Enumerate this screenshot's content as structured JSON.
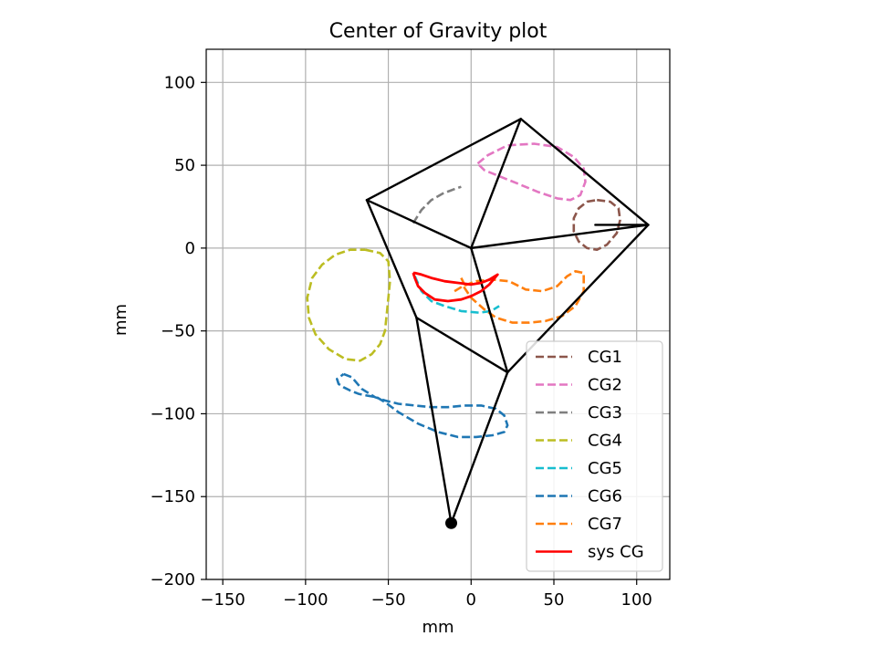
{
  "chart_data": {
    "type": "line",
    "title": "Center of Gravity plot",
    "xlabel": "mm",
    "ylabel": "mm",
    "xlim": [
      -160,
      120
    ],
    "ylim": [
      -200,
      120
    ],
    "xticks": [
      -150,
      -100,
      -50,
      0,
      50,
      100
    ],
    "yticks": [
      -200,
      -150,
      -100,
      -50,
      0,
      50,
      100
    ],
    "xtick_labels": [
      "−150",
      "−100",
      "−50",
      "0",
      "50",
      "100"
    ],
    "ytick_labels": [
      "−200",
      "−150",
      "−100",
      "−50",
      "0",
      "50",
      "100"
    ],
    "grid": true,
    "legend_position": "lower right",
    "colors": {
      "CG1": "#8c564b",
      "CG2": "#e377c2",
      "CG3": "#7f7f7f",
      "CG4": "#bcbd22",
      "CG5": "#17becf",
      "CG6": "#1f77b4",
      "CG7": "#ff7f0e",
      "sys CG": "#ff0000",
      "linkage": "#000000"
    },
    "linkage": [
      {
        "x": [
          0,
          30
        ],
        "y": [
          0,
          78
        ]
      },
      {
        "x": [
          30,
          107
        ],
        "y": [
          78,
          14
        ]
      },
      {
        "x": [
          30,
          -63
        ],
        "y": [
          78,
          29
        ]
      },
      {
        "x": [
          -63,
          0
        ],
        "y": [
          29,
          0
        ]
      },
      {
        "x": [
          0,
          107
        ],
        "y": [
          0,
          14
        ]
      },
      {
        "x": [
          75,
          107
        ],
        "y": [
          14,
          14
        ]
      },
      {
        "x": [
          107,
          22
        ],
        "y": [
          14,
          -75
        ]
      },
      {
        "x": [
          0,
          22
        ],
        "y": [
          0,
          -75
        ]
      },
      {
        "x": [
          -63,
          -33
        ],
        "y": [
          29,
          -42
        ]
      },
      {
        "x": [
          -33,
          22
        ],
        "y": [
          -42,
          -75
        ]
      },
      {
        "x": [
          -33,
          -12
        ],
        "y": [
          -42,
          -166
        ]
      },
      {
        "x": [
          -12,
          22
        ],
        "y": [
          -166,
          -75
        ]
      }
    ],
    "pivot": {
      "x": -12,
      "y": -166
    },
    "series": [
      {
        "name": "CG1",
        "x": [
          76,
          84,
          89,
          90,
          88,
          82,
          76,
          70,
          65,
          62,
          62,
          65,
          70,
          76
        ],
        "y": [
          29,
          28,
          24,
          17,
          9,
          2,
          -1,
          0,
          4,
          10,
          18,
          24,
          28,
          29
        ]
      },
      {
        "name": "CG2",
        "x": [
          4,
          10,
          22,
          38,
          52,
          62,
          68,
          69,
          66,
          60,
          52,
          40,
          28,
          18,
          8,
          4
        ],
        "y": [
          51,
          56,
          62,
          63,
          61,
          55,
          48,
          40,
          32,
          29,
          30,
          34,
          39,
          43,
          47,
          51
        ]
      },
      {
        "name": "CG3",
        "x": [
          -35,
          -30,
          -24,
          -17,
          -9,
          -6
        ],
        "y": [
          15,
          23,
          29,
          33,
          36,
          37
        ]
      },
      {
        "name": "CG4",
        "x": [
          -64,
          -55,
          -50,
          -49,
          -50,
          -51,
          -52,
          -55,
          -60,
          -67,
          -76,
          -86,
          -94,
          -98,
          -99,
          -96,
          -90,
          -82,
          -73,
          -64
        ],
        "y": [
          -1,
          -3,
          -8,
          -20,
          -30,
          -40,
          -50,
          -58,
          -64,
          -68,
          -67,
          -61,
          -52,
          -42,
          -30,
          -18,
          -10,
          -4,
          -1,
          -1
        ]
      },
      {
        "name": "CG5",
        "x": [
          -34,
          -30,
          -24,
          -16,
          -6,
          5,
          12,
          17
        ],
        "y": [
          -17,
          -26,
          -32,
          -35,
          -38,
          -39,
          -38,
          -35
        ]
      },
      {
        "name": "CG6",
        "x": [
          -77,
          -72,
          -66,
          -58,
          -52,
          -44,
          -34,
          -24,
          -14,
          -4,
          6,
          15,
          20,
          22,
          20,
          13,
          3,
          -8,
          -20,
          -32,
          -44,
          -52,
          -57,
          -63,
          -68,
          -73,
          -77,
          -80,
          -81,
          -77
        ],
        "y": [
          -76,
          -78,
          -85,
          -90,
          -92,
          -94,
          -95,
          -96,
          -96,
          -95,
          -95,
          -97,
          -101,
          -107,
          -111,
          -113,
          -114,
          -114,
          -111,
          -106,
          -99,
          -93,
          -90,
          -89,
          -88,
          -86,
          -84,
          -82,
          -79,
          -76
        ]
      },
      {
        "name": "CG7",
        "x": [
          -10,
          -5,
          3,
          13,
          23,
          33,
          43,
          52,
          58,
          63,
          68,
          68,
          63,
          55,
          45,
          35,
          25,
          15,
          8,
          0,
          -4,
          -5,
          -4,
          -6
        ],
        "y": [
          -26,
          -23,
          -20,
          -19,
          -20,
          -25,
          -26,
          -23,
          -17,
          -14,
          -15,
          -26,
          -35,
          -41,
          -44,
          -45,
          -45,
          -42,
          -37,
          -30,
          -24,
          -22,
          -22,
          -18
        ]
      },
      {
        "name": "sys CG",
        "x": [
          -35,
          -34,
          -32,
          -28,
          -22,
          -14,
          -6,
          0,
          6,
          11,
          16,
          11,
          6,
          0,
          -8,
          -16,
          -24,
          -30,
          -34,
          -35
        ],
        "y": [
          -15,
          -18,
          -23,
          -27,
          -31,
          -32,
          -31,
          -29,
          -26,
          -22,
          -16,
          -19,
          -21,
          -22,
          -21,
          -20,
          -18,
          -16,
          -15,
          -15
        ]
      }
    ]
  }
}
